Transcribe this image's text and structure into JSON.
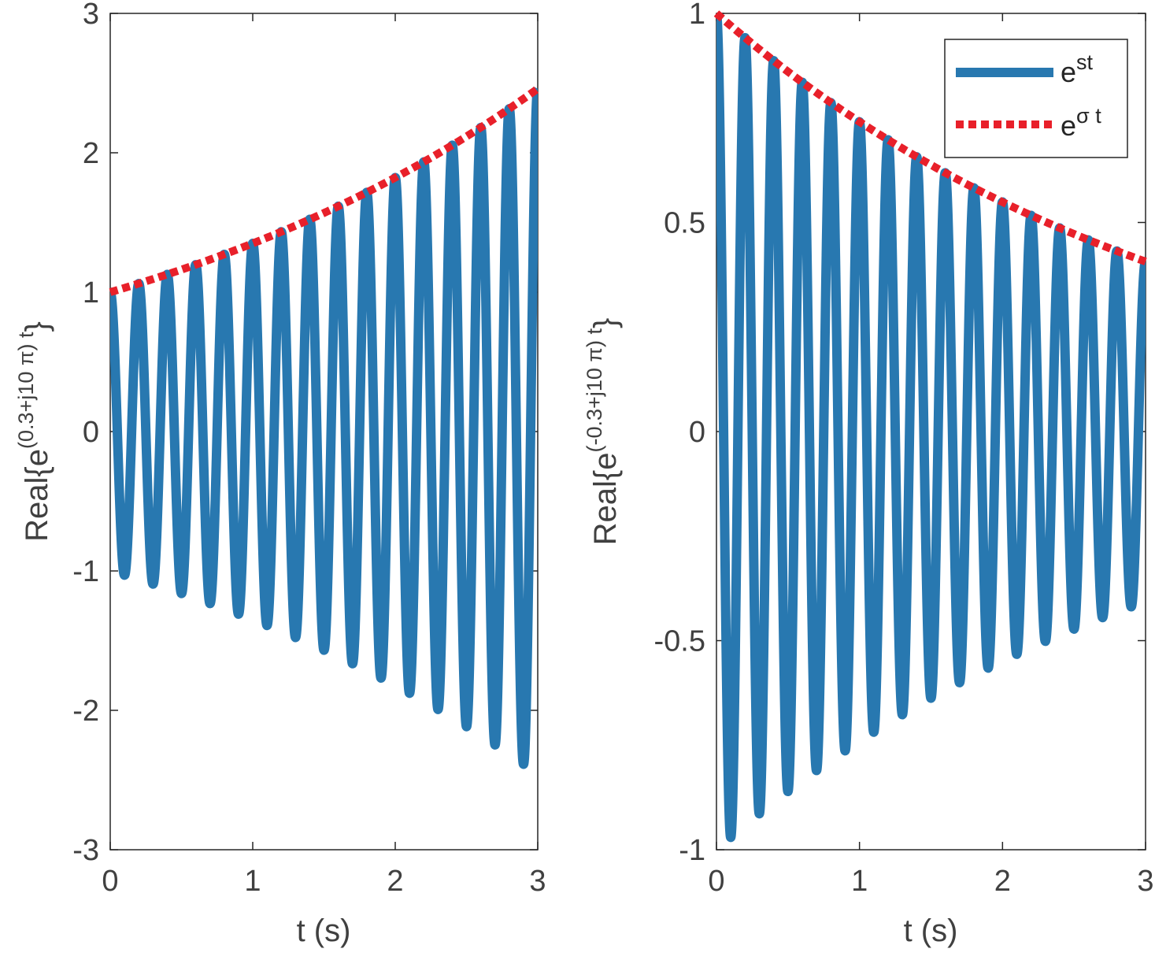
{
  "chart_data": [
    {
      "type": "line",
      "xlabel": "t (s)",
      "ylabel": {
        "base": "Real{e",
        "exponent": "(0.3+j10 π) t",
        "close": "}"
      },
      "xlim": [
        0,
        3
      ],
      "ylim": [
        -3,
        3
      ],
      "xticks": [
        "0",
        "1",
        "2",
        "3"
      ],
      "yticks": [
        "-3",
        "-2",
        "-1",
        "0",
        "1",
        "2",
        "3"
      ],
      "xtick_values": [
        0,
        1,
        2,
        3
      ],
      "ytick_values": [
        -3,
        -2,
        -1,
        0,
        1,
        2,
        3
      ],
      "series": [
        {
          "name": "e^st",
          "kind": "signal",
          "sigma": 0.3,
          "omega_rad_per_s": 31.4159,
          "t_range": [
            0,
            3
          ],
          "color": "#2878B0",
          "style": "solid"
        },
        {
          "name": "e^σt",
          "kind": "envelope",
          "sigma": 0.3,
          "t_range": [
            0,
            3
          ],
          "color": "#E8202A",
          "style": "dotted"
        }
      ]
    },
    {
      "type": "line",
      "xlabel": "t (s)",
      "ylabel": {
        "base": "Real{e",
        "exponent": "(-0.3+j10 π) t",
        "close": "}"
      },
      "xlim": [
        0,
        3
      ],
      "ylim": [
        -1,
        1
      ],
      "xticks": [
        "0",
        "1",
        "2",
        "3"
      ],
      "yticks": [
        "-1",
        "-0.5",
        "0",
        "0.5",
        "1"
      ],
      "xtick_values": [
        0,
        1,
        2,
        3
      ],
      "ytick_values": [
        -1,
        -0.5,
        0,
        0.5,
        1
      ],
      "series": [
        {
          "name": "e^st",
          "kind": "signal",
          "sigma": -0.3,
          "omega_rad_per_s": 31.4159,
          "t_range": [
            0,
            3
          ],
          "color": "#2878B0",
          "style": "solid"
        },
        {
          "name": "e^σt",
          "kind": "envelope",
          "sigma": -0.3,
          "t_range": [
            0,
            3
          ],
          "color": "#E8202A",
          "style": "dotted"
        }
      ],
      "legend": {
        "placement": "top-right",
        "entries": [
          {
            "base": "e",
            "exponent": "st",
            "color": "#2878B0",
            "style": "solid"
          },
          {
            "base": "e",
            "exponent": "σ t",
            "color": "#E8202A",
            "style": "dotted"
          }
        ]
      }
    }
  ]
}
